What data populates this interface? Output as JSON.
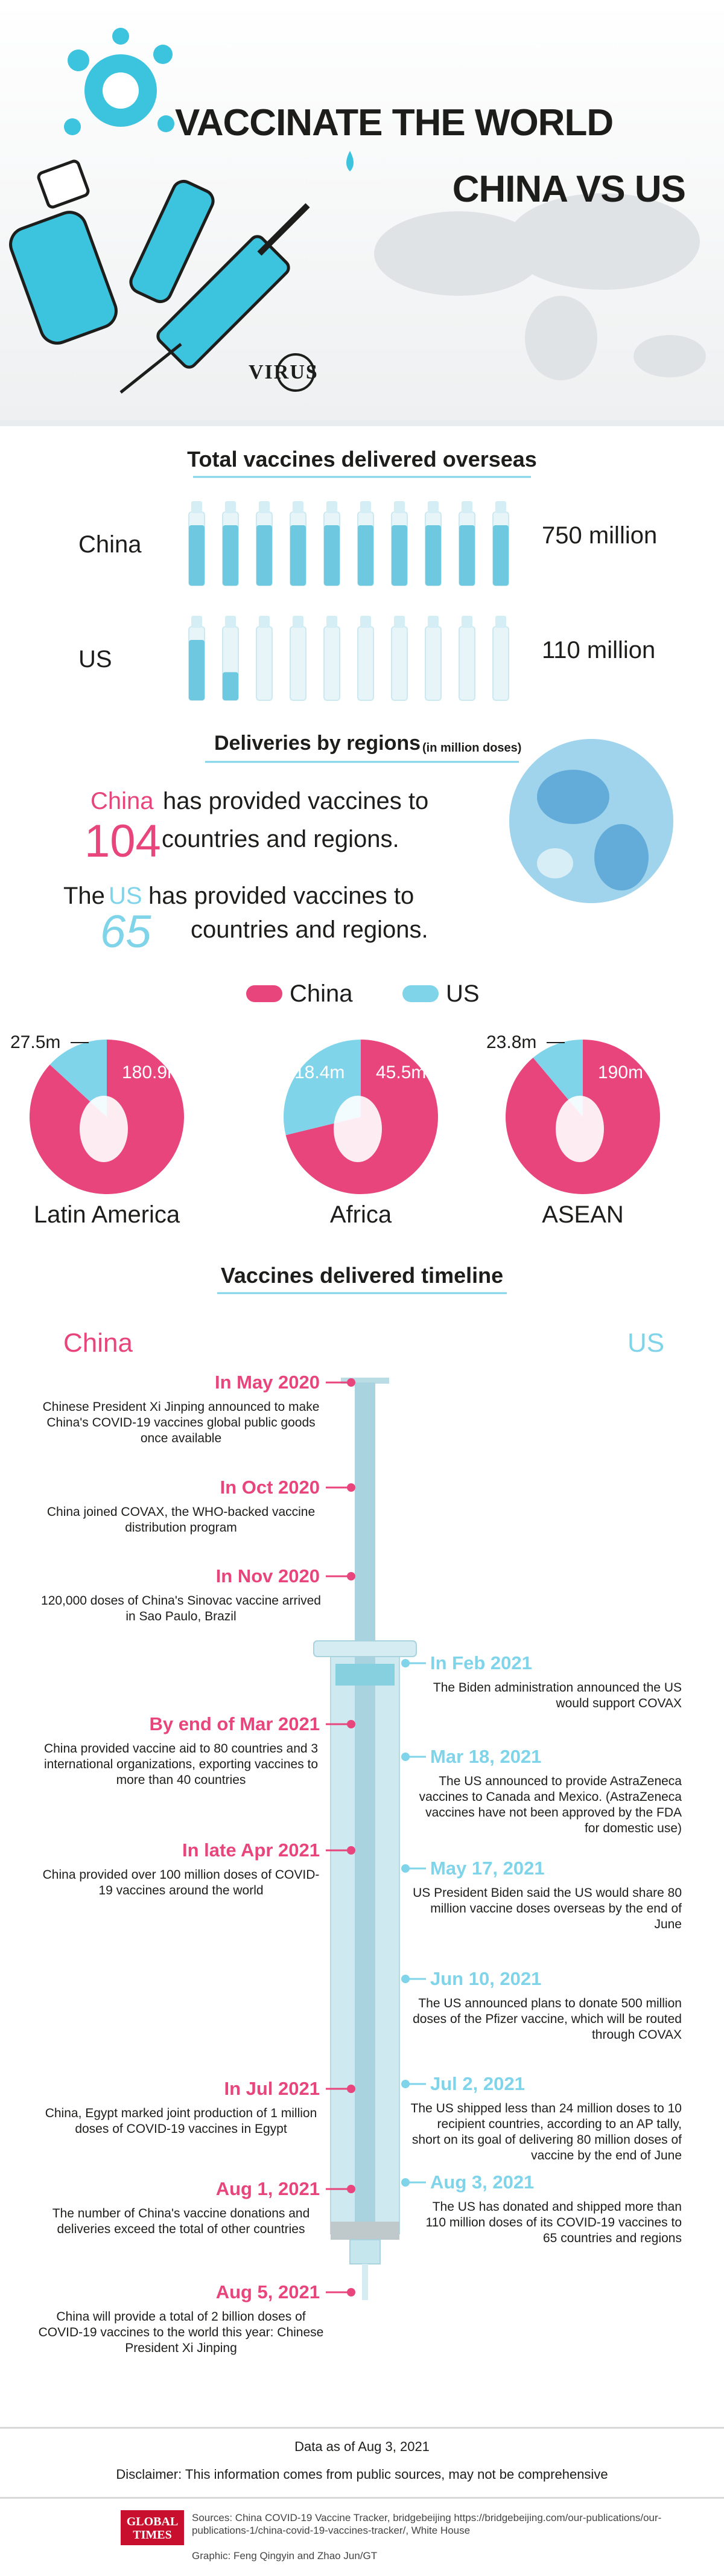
{
  "header": {
    "title": "VACCINATE THE WORLD",
    "subtitle": "CHINA VS US",
    "logo": "VIRUS"
  },
  "totals": {
    "title": "Total vaccines delivered overseas",
    "rows": [
      {
        "name": "China",
        "value": 750,
        "value_label": "750 million"
      },
      {
        "name": "US",
        "value": 110,
        "value_label": "110 million"
      }
    ]
  },
  "regions": {
    "title": "Deliveries by regions",
    "unit_note": "(in million doses)",
    "china": {
      "name": "China",
      "text": "has provided vaccines to",
      "count": 104,
      "suffix": "countries and regions."
    },
    "us": {
      "prefix": "The",
      "name": "US",
      "text": "has provided vaccines to",
      "count": 65,
      "suffix": "countries and regions."
    },
    "legend": [
      {
        "name": "China",
        "color": "#e8457d"
      },
      {
        "name": "US",
        "color": "#7fd4ea"
      }
    ],
    "pies": [
      {
        "name": "Latin America",
        "values": [
          180.9,
          27.5
        ],
        "value_labels": [
          "180.9m",
          "27.5m"
        ]
      },
      {
        "name": "Africa",
        "values": [
          45.5,
          18.4
        ],
        "value_labels": [
          "45.5m",
          "18.4m"
        ]
      },
      {
        "name": "ASEAN",
        "values": [
          190,
          23.8
        ],
        "value_labels": [
          "190m",
          "23.8m"
        ]
      }
    ]
  },
  "timeline": {
    "title": "Vaccines delivered timeline",
    "china_label": "China",
    "us_label": "US",
    "china": [
      {
        "date": "In May 2020",
        "text": "Chinese President Xi Jinping announced to make China's COVID-19 vaccines global public goods once available"
      },
      {
        "date": "In Oct 2020",
        "text": "China joined COVAX, the WHO-backed vaccine distribution program"
      },
      {
        "date": "In Nov 2020",
        "text": "120,000 doses of China's Sinovac vaccine arrived in Sao Paulo, Brazil"
      },
      {
        "date": "By end of Mar 2021",
        "text": "China provided vaccine aid to 80 countries and 3 international organizations, exporting vaccines to more than 40 countries"
      },
      {
        "date": "In late Apr 2021",
        "text": "China provided over 100 million doses of COVID-19 vaccines around the world"
      },
      {
        "date": "In Jul 2021",
        "text": "China, Egypt marked joint production of 1 million doses of COVID-19 vaccines in Egypt"
      },
      {
        "date": "Aug 1, 2021",
        "text": "The number of China's vaccine donations and deliveries exceed the total of other countries"
      },
      {
        "date": "Aug 5, 2021",
        "text": "China will provide a total of 2 billion doses of COVID-19 vaccines to the world this year: Chinese President Xi Jinping"
      }
    ],
    "us": [
      {
        "date": "In Feb 2021",
        "text": "The Biden administration announced the US would support COVAX"
      },
      {
        "date": "Mar 18, 2021",
        "text": "The US announced to provide AstraZeneca vaccines to Canada and Mexico. (AstraZeneca vaccines have not been approved by the FDA for domestic use)"
      },
      {
        "date": "May 17, 2021",
        "text": "US President Biden said the US would share 80 million vaccine doses overseas by the end of June"
      },
      {
        "date": "Jun 10, 2021",
        "text": "The US announced plans to donate 500 million doses of the Pfizer vaccine, which will be routed through COVAX"
      },
      {
        "date": "Jul 2, 2021",
        "text": "The US shipped less than 24 million doses to 10 recipient countries, according to an AP tally, short on its goal of delivering 80 million doses of vaccine by the end of June"
      },
      {
        "date": "Aug 3, 2021",
        "text": "The US has donated and shipped more than 110 million doses of its COVID-19 vaccines to 65 countries and regions"
      }
    ]
  },
  "footer": {
    "data_note": "Data as of Aug 3, 2021",
    "disclaimer": "Disclaimer: This information comes from public sources, may not be comprehensive",
    "logo": "GLOBAL TIMES",
    "sources": "Sources: China COVID-19 Vaccine Tracker, bridgebeijing https://bridgebeijing.com/our-publications/our-publications-1/china-covid-19-vaccines-tracker/, White House",
    "credit": "Graphic: Feng Qingyin and Zhao Jun/GT"
  }
}
